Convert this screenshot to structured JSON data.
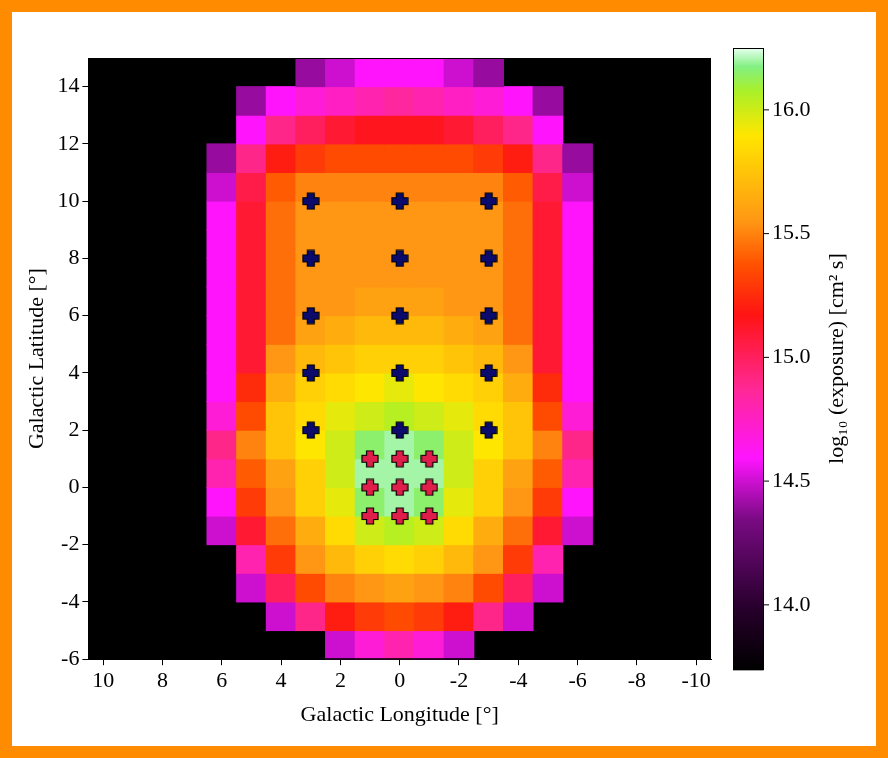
{
  "chart_data": {
    "type": "heatmap",
    "xlabel": "Galactic Longitude [°]",
    "ylabel": "Galactic Latitude [°]",
    "xlim": [
      10.5,
      -10.5
    ],
    "ylim": [
      -6,
      15
    ],
    "xticks": [
      10,
      8,
      6,
      4,
      2,
      0,
      -2,
      -4,
      -6,
      -8,
      -10
    ],
    "yticks": [
      -6,
      -4,
      -2,
      0,
      2,
      4,
      6,
      8,
      10,
      12,
      14
    ],
    "grid": false,
    "heatmap": {
      "x": [
        10,
        9,
        8,
        7,
        6,
        5,
        4,
        3,
        2,
        1,
        0,
        -1,
        -2,
        -3,
        -4,
        -5,
        -6,
        -7,
        -8,
        -9,
        -10
      ],
      "y": [
        -5.5,
        -4.5,
        -3.5,
        -2.5,
        -1.5,
        -0.5,
        0.5,
        1.5,
        2.5,
        3.5,
        4.5,
        5.5,
        6.5,
        7.5,
        8.5,
        9.5,
        10.5,
        11.5,
        12.5,
        13.5,
        14.5
      ],
      "z": [
        [
          null,
          null,
          null,
          null,
          null,
          null,
          null,
          null,
          14.5,
          14.7,
          14.8,
          14.7,
          14.5,
          null,
          null,
          null,
          null,
          null,
          null,
          null,
          null
        ],
        [
          null,
          null,
          null,
          null,
          null,
          null,
          14.5,
          14.9,
          15.2,
          15.3,
          15.35,
          15.3,
          15.2,
          14.9,
          14.5,
          null,
          null,
          null,
          null,
          null,
          null
        ],
        [
          null,
          null,
          null,
          null,
          null,
          14.5,
          15.0,
          15.35,
          15.5,
          15.55,
          15.6,
          15.55,
          15.5,
          15.35,
          15.0,
          14.5,
          null,
          null,
          null,
          null,
          null
        ],
        [
          null,
          null,
          null,
          null,
          null,
          14.8,
          15.3,
          15.55,
          15.7,
          15.8,
          15.85,
          15.8,
          15.7,
          15.55,
          15.3,
          14.8,
          null,
          null,
          null,
          null,
          null
        ],
        [
          null,
          null,
          null,
          null,
          14.5,
          15.1,
          15.45,
          15.65,
          15.85,
          16.0,
          16.05,
          16.0,
          15.85,
          15.65,
          15.45,
          15.1,
          14.5,
          null,
          null,
          null,
          null
        ],
        [
          null,
          null,
          null,
          null,
          14.6,
          15.3,
          15.55,
          15.8,
          15.95,
          16.15,
          16.2,
          16.15,
          15.95,
          15.8,
          15.55,
          15.3,
          14.6,
          null,
          null,
          null,
          null
        ],
        [
          null,
          null,
          null,
          null,
          14.8,
          15.4,
          15.6,
          15.8,
          16.0,
          16.2,
          16.2,
          16.2,
          16.0,
          15.8,
          15.6,
          15.4,
          14.8,
          null,
          null,
          null,
          null
        ],
        [
          null,
          null,
          null,
          null,
          14.9,
          15.5,
          15.75,
          15.9,
          16.0,
          16.15,
          16.2,
          16.15,
          16.0,
          15.9,
          15.75,
          15.5,
          14.9,
          null,
          null,
          null,
          null
        ],
        [
          null,
          null,
          null,
          null,
          14.7,
          15.35,
          15.75,
          15.85,
          15.95,
          16.0,
          16.05,
          16.0,
          15.95,
          15.85,
          15.75,
          15.35,
          14.7,
          null,
          null,
          null,
          null
        ],
        [
          null,
          null,
          null,
          null,
          14.6,
          15.25,
          15.65,
          15.8,
          15.85,
          15.9,
          15.95,
          15.9,
          15.85,
          15.8,
          15.65,
          15.25,
          14.6,
          null,
          null,
          null,
          null
        ],
        [
          null,
          null,
          null,
          null,
          14.6,
          15.1,
          15.55,
          15.7,
          15.75,
          15.8,
          15.8,
          15.8,
          15.75,
          15.7,
          15.55,
          15.1,
          14.6,
          null,
          null,
          null,
          null
        ],
        [
          null,
          null,
          null,
          null,
          14.6,
          15.1,
          15.45,
          15.6,
          15.65,
          15.7,
          15.7,
          15.7,
          15.65,
          15.6,
          15.45,
          15.1,
          14.6,
          null,
          null,
          null,
          null
        ],
        [
          null,
          null,
          null,
          null,
          14.6,
          15.1,
          15.45,
          15.55,
          15.55,
          15.6,
          15.6,
          15.6,
          15.55,
          15.55,
          15.45,
          15.1,
          14.6,
          null,
          null,
          null,
          null
        ],
        [
          null,
          null,
          null,
          null,
          14.6,
          15.1,
          15.45,
          15.55,
          15.55,
          15.55,
          15.55,
          15.55,
          15.55,
          15.55,
          15.45,
          15.1,
          14.6,
          null,
          null,
          null,
          null
        ],
        [
          null,
          null,
          null,
          null,
          14.6,
          15.1,
          15.45,
          15.55,
          15.55,
          15.55,
          15.55,
          15.55,
          15.55,
          15.55,
          15.45,
          15.1,
          14.6,
          null,
          null,
          null,
          null
        ],
        [
          null,
          null,
          null,
          null,
          14.6,
          15.1,
          15.45,
          15.55,
          15.55,
          15.55,
          15.55,
          15.55,
          15.55,
          15.55,
          15.45,
          15.1,
          14.6,
          null,
          null,
          null,
          null
        ],
        [
          null,
          null,
          null,
          null,
          14.5,
          15.05,
          15.4,
          15.5,
          15.5,
          15.5,
          15.5,
          15.5,
          15.5,
          15.5,
          15.4,
          15.05,
          14.5,
          null,
          null,
          null,
          null
        ],
        [
          null,
          null,
          null,
          null,
          14.4,
          14.9,
          15.2,
          15.3,
          15.35,
          15.35,
          15.35,
          15.35,
          15.35,
          15.3,
          15.2,
          14.9,
          14.4,
          null,
          null,
          null,
          null
        ],
        [
          null,
          null,
          null,
          null,
          null,
          14.6,
          14.9,
          15.0,
          15.1,
          15.15,
          15.15,
          15.15,
          15.1,
          15.0,
          14.9,
          14.6,
          null,
          null,
          null,
          null,
          null
        ],
        [
          null,
          null,
          null,
          null,
          null,
          14.4,
          14.6,
          14.7,
          14.75,
          14.8,
          14.85,
          14.8,
          14.75,
          14.7,
          14.6,
          14.4,
          null,
          null,
          null,
          null,
          null
        ],
        [
          null,
          null,
          null,
          null,
          null,
          null,
          null,
          14.4,
          14.5,
          14.6,
          14.6,
          14.6,
          14.5,
          14.4,
          null,
          null,
          null,
          null,
          null,
          null,
          null
        ]
      ]
    },
    "colorbar": {
      "label": "log₁₀ (exposure) [cm² s]",
      "range": [
        13.74,
        16.25
      ],
      "ticks": [
        {
          "value": 14,
          "label": "14.0"
        },
        {
          "value": 14.5,
          "label": "14.5"
        },
        {
          "value": 15,
          "label": "15.0"
        },
        {
          "value": 15.5,
          "label": "15.5"
        },
        {
          "value": 16,
          "label": "16.0"
        }
      ]
    },
    "series": [
      {
        "type": "scatter",
        "marker": "plus",
        "color": "#0b0b6e",
        "x": [
          3,
          0,
          -3,
          3,
          0,
          -3,
          3,
          0,
          -3,
          3,
          0,
          -3,
          3,
          0,
          -3
        ],
        "y": [
          10,
          10,
          10,
          8,
          8,
          8,
          6,
          6,
          6,
          4,
          4,
          4,
          2,
          2,
          2
        ]
      },
      {
        "type": "scatter",
        "marker": "plus",
        "color": "#e01e4b",
        "x": [
          1,
          0,
          -1,
          1,
          0,
          -1,
          1,
          0,
          -1
        ],
        "y": [
          1,
          1,
          1,
          0,
          0,
          0,
          -1,
          -1,
          -1
        ]
      }
    ]
  }
}
